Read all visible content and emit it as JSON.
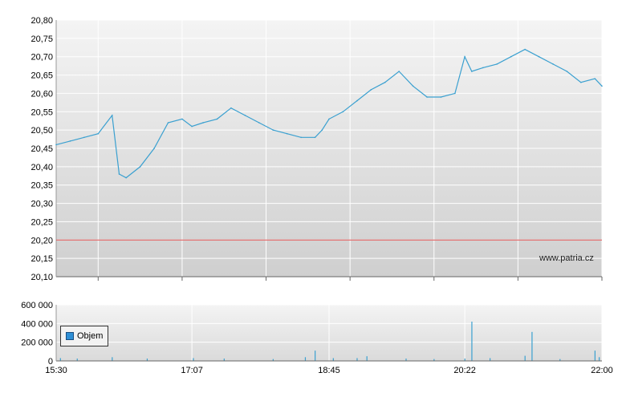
{
  "chart_data": [
    {
      "type": "line",
      "title": "",
      "xlabel": "",
      "ylabel": "",
      "x_range": [
        "15:30",
        "22:00"
      ],
      "ylim": [
        20.1,
        20.8
      ],
      "y_ticks": [
        "20,80",
        "20,75",
        "20,70",
        "20,65",
        "20,60",
        "20,55",
        "20,50",
        "20,45",
        "20,40",
        "20,35",
        "20,30",
        "20,25",
        "20,20",
        "20,15",
        "20,10"
      ],
      "grid": true,
      "reference_line": {
        "value": 20.2,
        "color": "#e05050"
      },
      "series": [
        {
          "color": "#3aa0d0",
          "x": [
            "15:30",
            "15:40",
            "15:50",
            "16:00",
            "16:10",
            "16:15",
            "16:20",
            "16:30",
            "16:40",
            "16:50",
            "17:00",
            "17:07",
            "17:15",
            "17:25",
            "17:35",
            "17:45",
            "17:55",
            "18:05",
            "18:15",
            "18:25",
            "18:35",
            "18:40",
            "18:45",
            "18:55",
            "19:05",
            "19:15",
            "19:25",
            "19:35",
            "19:45",
            "19:55",
            "20:05",
            "20:15",
            "20:22",
            "20:27",
            "20:35",
            "20:45",
            "20:55",
            "21:05",
            "21:15",
            "21:25",
            "21:35",
            "21:45",
            "21:55",
            "22:00"
          ],
          "values": [
            20.46,
            20.47,
            20.48,
            20.49,
            20.54,
            20.38,
            20.37,
            20.4,
            20.45,
            20.52,
            20.53,
            20.51,
            20.52,
            20.53,
            20.56,
            20.54,
            20.52,
            20.5,
            20.49,
            20.48,
            20.48,
            20.5,
            20.53,
            20.55,
            20.58,
            20.61,
            20.63,
            20.66,
            20.62,
            20.59,
            20.59,
            20.6,
            20.7,
            20.66,
            20.67,
            20.68,
            20.7,
            20.72,
            20.7,
            20.68,
            20.66,
            20.63,
            20.64,
            20.62
          ]
        }
      ],
      "watermark": "www.patria.cz"
    },
    {
      "type": "bar",
      "title": "",
      "ylim": [
        0,
        600000
      ],
      "y_ticks": [
        "600 000",
        "400 000",
        "200 000",
        "0"
      ],
      "x_ticks": [
        "15:30",
        "17:07",
        "18:45",
        "20:22",
        "22:00"
      ],
      "grid": true,
      "legend": {
        "label": "Objem",
        "color": "#2e8fd6",
        "position": "bottom-left"
      },
      "series": [
        {
          "name": "Objem",
          "x": [
            "15:33",
            "15:45",
            "16:10",
            "16:35",
            "17:08",
            "17:30",
            "18:05",
            "18:28",
            "18:35",
            "18:48",
            "19:05",
            "19:12",
            "19:40",
            "20:00",
            "20:22",
            "20:27",
            "20:40",
            "21:05",
            "21:10",
            "21:30",
            "21:55",
            "21:58"
          ],
          "values": [
            30000,
            25000,
            40000,
            25000,
            30000,
            25000,
            20000,
            40000,
            110000,
            30000,
            30000,
            50000,
            25000,
            20000,
            25000,
            420000,
            30000,
            55000,
            310000,
            20000,
            110000,
            40000
          ]
        }
      ]
    }
  ]
}
